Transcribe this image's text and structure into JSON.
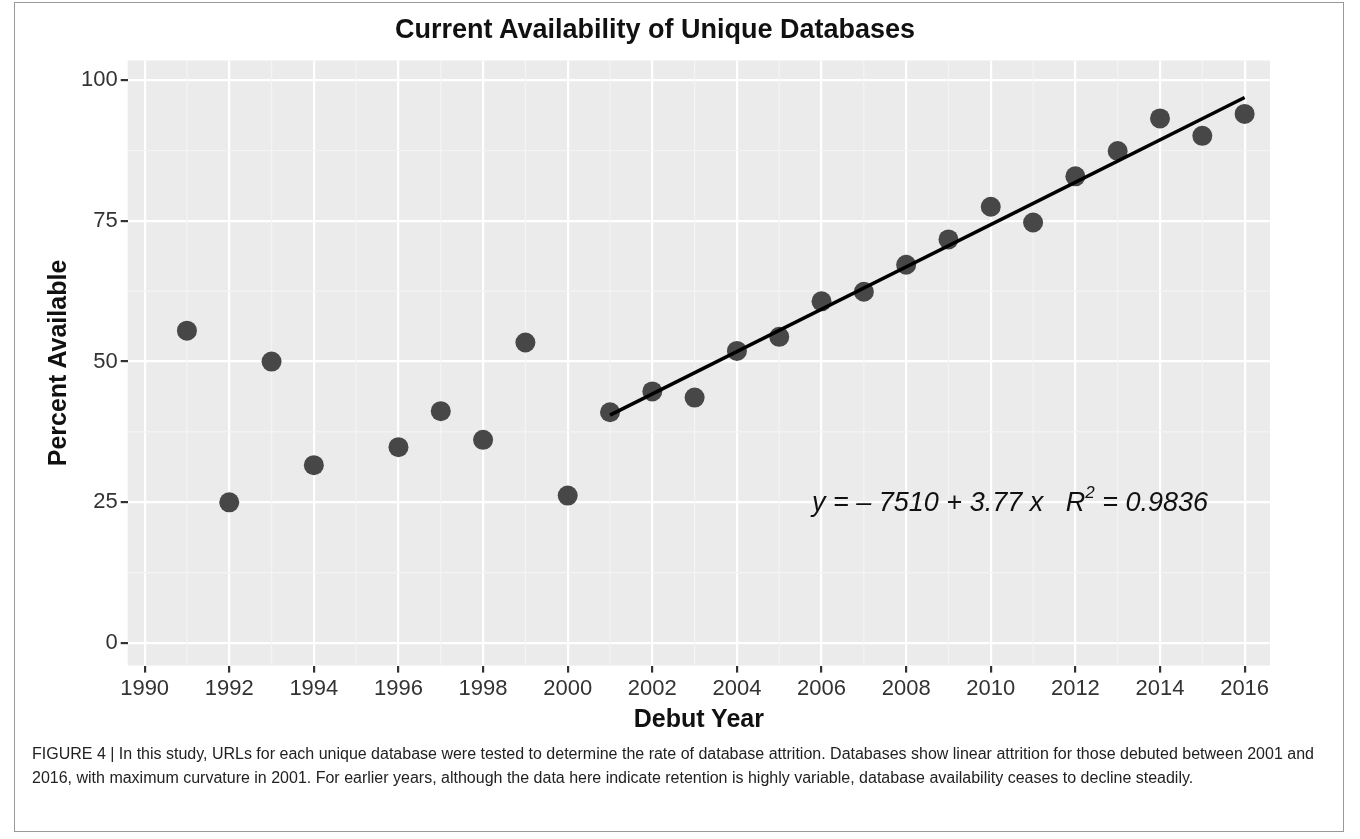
{
  "chart_data": {
    "type": "scatter",
    "title": "Current Availability of Unique Databases",
    "xlabel": "Debut Year",
    "ylabel": "Percent Available",
    "xlim": [
      1989.6,
      2016.6
    ],
    "xticks": [
      1990,
      1992,
      1994,
      1996,
      1998,
      2000,
      2002,
      2004,
      2006,
      2008,
      2010,
      2012,
      2014,
      2016
    ],
    "ylim": [
      -4,
      103.5
    ],
    "yticks": [
      0,
      25,
      50,
      75,
      100
    ],
    "grid": true,
    "legend": false,
    "series": [
      {
        "marker": "circle",
        "color": "#474747",
        "x": [
          1991,
          1992,
          1993,
          1994,
          1996,
          1997,
          1998,
          1999,
          2000,
          2001,
          2002,
          2003,
          2004,
          2005,
          2006,
          2007,
          2008,
          2009,
          2010,
          2011,
          2012,
          2013,
          2014,
          2015,
          2016
        ],
        "values": [
          55.5,
          25,
          50,
          31.6,
          34.8,
          41.2,
          36.1,
          53.4,
          26.2,
          41,
          44.7,
          43.6,
          51.9,
          54.4,
          60.7,
          62.4,
          67.2,
          71.7,
          77.5,
          74.7,
          82.9,
          87.4,
          93.2,
          90.1,
          94
        ]
      },
      {
        "type": "line",
        "marker": "none",
        "color": "#000000",
        "x": [
          2001,
          2016
        ],
        "values": [
          40.5,
          96.9
        ]
      }
    ],
    "annotations": [
      "y = – 7510 + 3.77 x   R$^{2}$ = 0.9836",
      "FIGURE 4 | In this study, URLs for each unique database were tested to determine the rate of database attrition. Databases show linear attrition for those debuted between 2001 and 2016, with maximum curvature in 2001. For earlier years, although the data here indicate retention is highly variable, database availability ceases to decline steadily."
    ]
  }
}
